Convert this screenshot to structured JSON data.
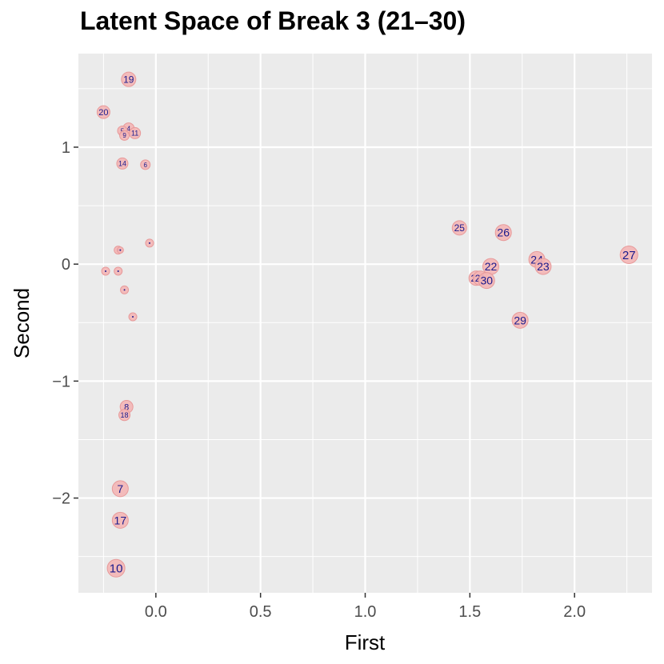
{
  "chart_data": {
    "type": "scatter",
    "title": "Latent Space of Break 3 (21–30)",
    "xlabel": "First",
    "ylabel": "Second",
    "xlim": [
      -0.37,
      2.37
    ],
    "ylim": [
      -2.81,
      1.8
    ],
    "x_ticks": [
      0.0,
      0.5,
      1.0,
      1.5,
      2.0
    ],
    "x_tick_labels": [
      "0.0",
      "0.5",
      "1.0",
      "1.5",
      "2.0"
    ],
    "y_ticks": [
      -2,
      -1,
      0,
      1
    ],
    "y_tick_labels": [
      "−2",
      "−1",
      "0",
      "1"
    ],
    "grid": true,
    "panel_background": "#ebebeb",
    "point_fill": "#f4b6b6",
    "point_stroke": "#e79a9a",
    "label_color": "#1a1a8c",
    "points": [
      {
        "label": "19",
        "x": -0.13,
        "y": 1.58,
        "size": 9
      },
      {
        "label": "20",
        "x": -0.25,
        "y": 1.3,
        "size": 8
      },
      {
        "label": "4",
        "x": -0.13,
        "y": 1.16,
        "size": 7
      },
      {
        "label": "5",
        "x": -0.16,
        "y": 1.14,
        "size": 6
      },
      {
        "label": "11",
        "x": -0.1,
        "y": 1.12,
        "size": 7
      },
      {
        "label": "9",
        "x": -0.15,
        "y": 1.1,
        "size": 6
      },
      {
        "label": "14",
        "x": -0.16,
        "y": 0.86,
        "size": 7
      },
      {
        "label": "6",
        "x": -0.05,
        "y": 0.85,
        "size": 6
      },
      {
        "label": "",
        "x": -0.03,
        "y": 0.18,
        "size": 5
      },
      {
        "label": "",
        "x": -0.18,
        "y": 0.12,
        "size": 5
      },
      {
        "label": "",
        "x": -0.17,
        "y": 0.12,
        "size": 4
      },
      {
        "label": "",
        "x": -0.24,
        "y": -0.06,
        "size": 5
      },
      {
        "label": "",
        "x": -0.18,
        "y": -0.06,
        "size": 5
      },
      {
        "label": "",
        "x": -0.15,
        "y": -0.22,
        "size": 5
      },
      {
        "label": "",
        "x": -0.11,
        "y": -0.45,
        "size": 5
      },
      {
        "label": "8",
        "x": -0.14,
        "y": -1.22,
        "size": 8
      },
      {
        "label": "18",
        "x": -0.15,
        "y": -1.29,
        "size": 7
      },
      {
        "label": "7",
        "x": -0.17,
        "y": -1.92,
        "size": 10
      },
      {
        "label": "17",
        "x": -0.17,
        "y": -2.19,
        "size": 10
      },
      {
        "label": "10",
        "x": -0.19,
        "y": -2.6,
        "size": 11
      },
      {
        "label": "25",
        "x": 1.45,
        "y": 0.31,
        "size": 9
      },
      {
        "label": "26",
        "x": 1.66,
        "y": 0.27,
        "size": 10
      },
      {
        "label": "22",
        "x": 1.6,
        "y": -0.02,
        "size": 10
      },
      {
        "label": "28",
        "x": 1.53,
        "y": -0.12,
        "size": 9
      },
      {
        "label": "21",
        "x": 1.55,
        "y": -0.12,
        "size": 9
      },
      {
        "label": "30",
        "x": 1.58,
        "y": -0.14,
        "size": 10
      },
      {
        "label": "24",
        "x": 1.82,
        "y": 0.04,
        "size": 10
      },
      {
        "label": "23",
        "x": 1.85,
        "y": -0.02,
        "size": 10
      },
      {
        "label": "29",
        "x": 1.74,
        "y": -0.48,
        "size": 10
      },
      {
        "label": "27",
        "x": 2.26,
        "y": 0.08,
        "size": 11
      }
    ]
  }
}
